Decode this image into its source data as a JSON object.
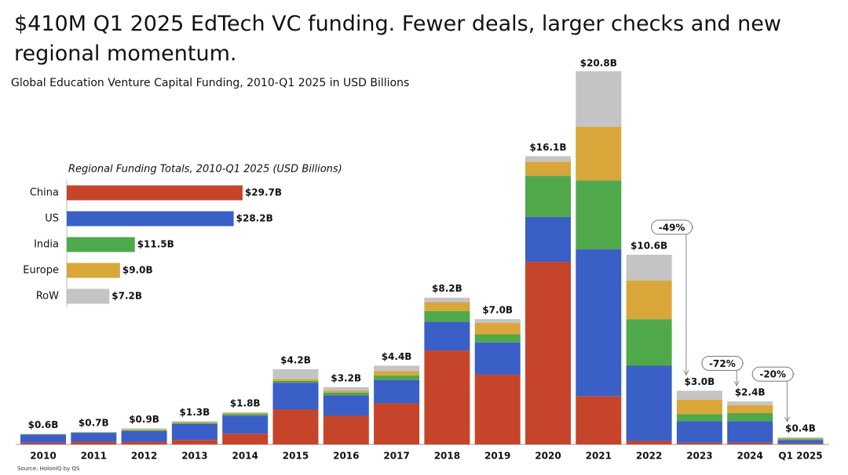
{
  "chart_data": [
    {
      "type": "stacked-bar",
      "title": "$410M Q1 2025 EdTech VC funding. Fewer deals, larger checks and new regional momentum.",
      "subtitle": "Global Education Venture Capital Funding, 2010-Q1 2025 in USD Billions",
      "source": "Source: HolonIQ by QS",
      "categories": [
        "2010",
        "2011",
        "2012",
        "2013",
        "2014",
        "2015",
        "2016",
        "2017",
        "2018",
        "2019",
        "2020",
        "2021",
        "2022",
        "2023",
        "2024",
        "Q1 2025"
      ],
      "series": [
        {
          "name": "China",
          "color": "#c6452a",
          "values": [
            0.1,
            0.15,
            0.15,
            0.25,
            0.6,
            1.95,
            1.6,
            2.3,
            5.25,
            3.9,
            10.2,
            2.7,
            0.2,
            0.1,
            0.1,
            0.05
          ]
        },
        {
          "name": "US",
          "color": "#3a5fc6",
          "values": [
            0.45,
            0.5,
            0.6,
            0.9,
            1.0,
            1.5,
            1.15,
            1.3,
            1.6,
            1.8,
            2.5,
            8.2,
            4.2,
            1.2,
            1.2,
            0.2
          ]
        },
        {
          "name": "India",
          "color": "#4fa84a",
          "values": [
            0.01,
            0.02,
            0.05,
            0.05,
            0.1,
            0.1,
            0.15,
            0.25,
            0.6,
            0.45,
            2.3,
            3.85,
            2.6,
            0.4,
            0.45,
            0.05
          ]
        },
        {
          "name": "Europe",
          "color": "#d9a63a",
          "values": [
            0.02,
            0.02,
            0.05,
            0.05,
            0.05,
            0.1,
            0.1,
            0.25,
            0.5,
            0.65,
            0.8,
            3.0,
            2.15,
            0.8,
            0.45,
            0.05
          ]
        },
        {
          "name": "RoW",
          "color": "#c4c4c4",
          "values": [
            0.02,
            0.01,
            0.05,
            0.05,
            0.05,
            0.55,
            0.2,
            0.3,
            0.25,
            0.2,
            0.3,
            3.1,
            1.45,
            0.5,
            0.2,
            0.05
          ]
        }
      ],
      "totals": {
        "values": [
          0.6,
          0.7,
          0.9,
          1.3,
          1.8,
          4.2,
          3.2,
          4.4,
          8.2,
          7.0,
          16.1,
          20.8,
          10.6,
          3.0,
          2.4,
          0.4
        ],
        "value_labels": [
          "$0.6B",
          "$0.7B",
          "$0.9B",
          "$1.3B",
          "$1.8B",
          "$4.2B",
          "$3.2B",
          "$4.4B",
          "$8.2B",
          "$7.0B",
          "$16.1B",
          "$20.8B",
          "$10.6B",
          "$3.0B",
          "$2.4B",
          "$0.4B"
        ]
      },
      "annotations": [
        "-49%",
        "-72%",
        "-20%"
      ]
    },
    {
      "type": "hbar",
      "title": "Regional Funding Totals, 2010-Q1 2025 (USD Billions)",
      "categories": [
        "China",
        "US",
        "India",
        "Europe",
        "RoW"
      ],
      "values": [
        29.7,
        28.2,
        11.5,
        9.0,
        7.2
      ],
      "value_labels": [
        "$29.7B",
        "$28.2B",
        "$11.5B",
        "$9.0B",
        "$7.2B"
      ],
      "colors": [
        "#c6452a",
        "#3a5fc6",
        "#4fa84a",
        "#d9a63a",
        "#c4c4c4"
      ]
    }
  ]
}
